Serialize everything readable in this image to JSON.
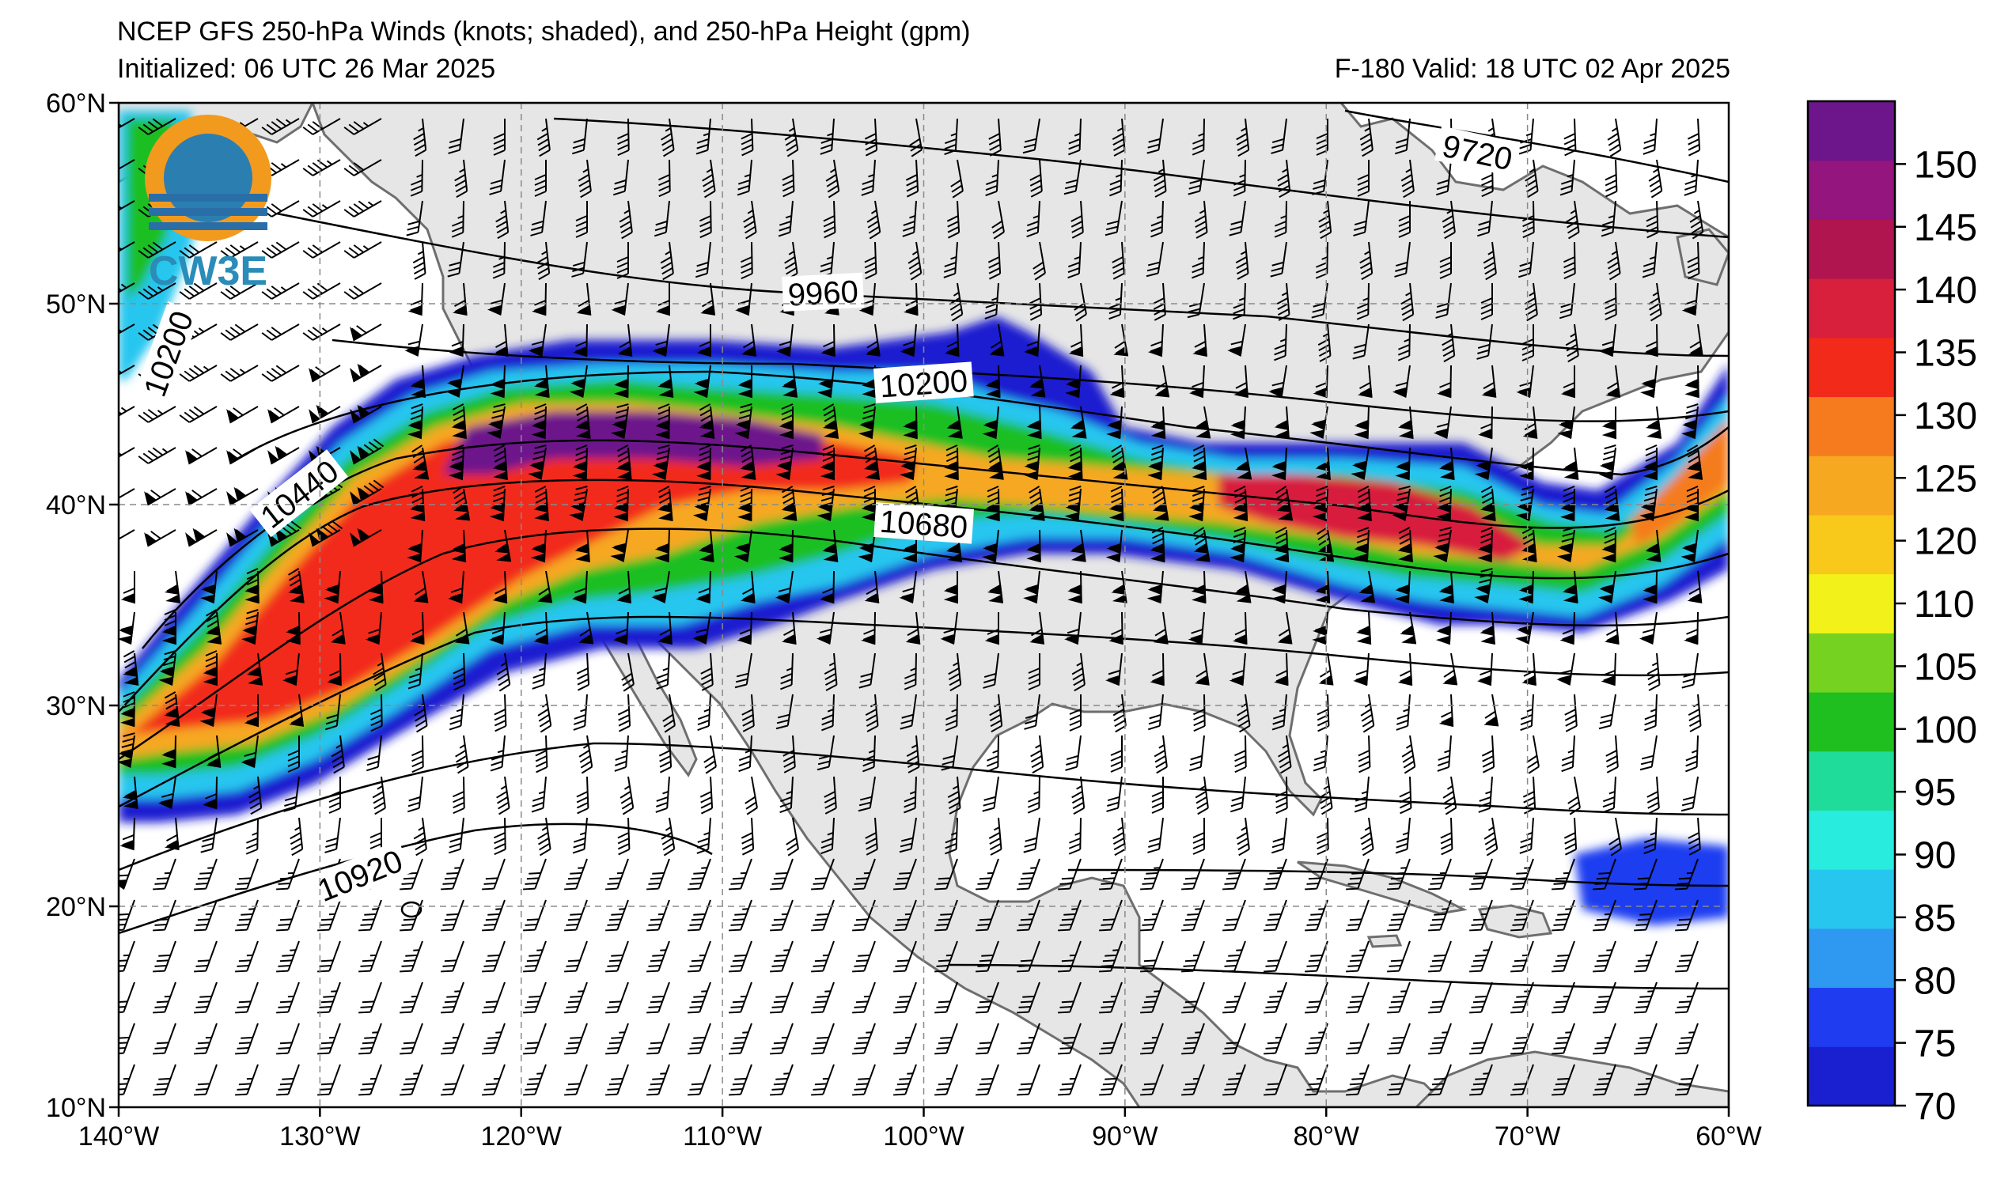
{
  "header": {
    "title": "NCEP GFS 250-hPa Winds (knots; shaded), and 250-hPa Height (gpm)",
    "init": "Initialized: 06 UTC 26 Mar 2025",
    "valid": "F-180  Valid: 18 UTC 02 Apr 2025"
  },
  "logo": {
    "text": "CW3E"
  },
  "axes": {
    "lat_labels": [
      "60°N",
      "50°N",
      "40°N",
      "30°N",
      "20°N",
      "10°N"
    ],
    "lon_labels": [
      "140°W",
      "130°W",
      "120°W",
      "110°W",
      "100°W",
      "90°W",
      "80°W",
      "70°W",
      "60°W"
    ],
    "lat_range": [
      10,
      60
    ],
    "lon_range": [
      -140,
      -60
    ]
  },
  "contours": {
    "labels": [
      "9720",
      "9960",
      "10200",
      "10200",
      "10440",
      "10680",
      "10920"
    ],
    "label_positions_lonlat": [
      [
        -72.5,
        57.5
      ],
      [
        -105,
        50.5
      ],
      [
        -100,
        46
      ],
      [
        -137.5,
        47.5
      ],
      [
        -131,
        40.5
      ],
      [
        -100,
        39
      ],
      [
        -128,
        21.5
      ]
    ],
    "label_angles": [
      12,
      -3,
      -4,
      -70,
      -38,
      4,
      -22
    ]
  },
  "colorbar": {
    "colors": [
      "#1a1fd0",
      "#1f3cf0",
      "#2f98f0",
      "#27c6ef",
      "#27ecde",
      "#20dc9a",
      "#1fbf20",
      "#76d220",
      "#f2f21a",
      "#f8c81a",
      "#f6a820",
      "#f57b1e",
      "#f22a1a",
      "#d81f3c",
      "#b0154f",
      "#93157d",
      "#6d168c"
    ],
    "labels": [
      "70",
      "75",
      "80",
      "85",
      "90",
      "95",
      "100",
      "105",
      "110",
      "120",
      "125",
      "130",
      "135",
      "140",
      "145",
      "150"
    ]
  }
}
